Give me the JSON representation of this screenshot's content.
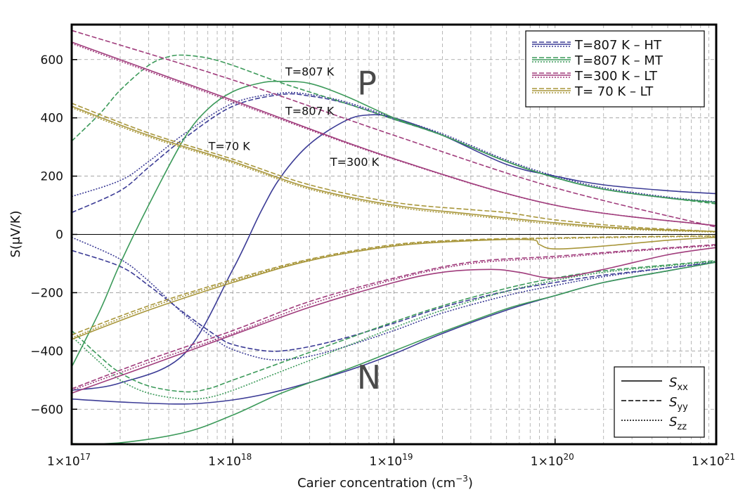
{
  "chart_data": {
    "type": "line",
    "xscale": "log",
    "xlim": [
      1e+17,
      1e+21
    ],
    "ylim": [
      -720,
      720
    ],
    "xlabel_base": "Carier concentration (cm",
    "xlabel_sup": "−3",
    "xlabel_end": ")",
    "ylabel": "S(μV/K)",
    "x_ticks": [
      {
        "value": 1e+17,
        "base": "1×10",
        "exp": "17"
      },
      {
        "value": 1e+18,
        "base": "1×10",
        "exp": "18"
      },
      {
        "value": 1e+19,
        "base": "1×10",
        "exp": "19"
      },
      {
        "value": 1e+20,
        "base": "1×10",
        "exp": "20"
      },
      {
        "value": 1e+21,
        "base": "1×10",
        "exp": "21"
      }
    ],
    "y_ticks": [
      {
        "value": 600,
        "label": "600"
      },
      {
        "value": 400,
        "label": "400"
      },
      {
        "value": 200,
        "label": "200"
      },
      {
        "value": 0,
        "label": "0"
      },
      {
        "value": -200,
        "label": "−200"
      },
      {
        "value": -400,
        "label": "−400"
      },
      {
        "value": -600,
        "label": "−600"
      }
    ],
    "grid": true,
    "zero_line": true,
    "region_labels": [
      {
        "text": "P",
        "x": 6.8e+18,
        "y": 480
      },
      {
        "text": "N",
        "x": 7e+18,
        "y": -530
      }
    ],
    "annotations": [
      {
        "text": "T=807 K",
        "x": 3e+18,
        "y": 545
      },
      {
        "text": "T=807 K",
        "x": 3e+18,
        "y": 410
      },
      {
        "text": "T=70 K",
        "x": 9.5e+17,
        "y": 290
      },
      {
        "text": "T=300 K",
        "x": 5.7e+18,
        "y": 235
      }
    ],
    "legend_series": [
      {
        "label": "T=807 K  –  HT",
        "color": "#3c3c96"
      },
      {
        "label": "T=807 K  –  MT",
        "color": "#3c9a5a"
      },
      {
        "label": "T=300 K  –  LT",
        "color": "#a03c7c"
      },
      {
        "label": "T=  70  K  –  LT",
        "color": "#a8963a"
      }
    ],
    "legend_components": [
      {
        "label": "S",
        "sub": "xx",
        "style": "solid"
      },
      {
        "label": "S",
        "sub": "yy",
        "style": "dashed"
      },
      {
        "label": "S",
        "sub": "zz",
        "style": "dotted"
      }
    ],
    "series": [
      {
        "group": "807 K - HT",
        "color": "#3c3c96",
        "style": "solid",
        "x": [
          1e+17,
          2e+17,
          5e+17,
          1e+18,
          1.5e+18,
          2e+18,
          3e+18,
          5e+18,
          7e+18,
          1e+19,
          2e+19,
          5e+19,
          1e+20,
          2e+20,
          5e+20,
          1e+21
        ],
        "y": [
          -535,
          -510,
          -410,
          -120,
          80,
          200,
          310,
          390,
          410,
          400,
          340,
          240,
          200,
          170,
          150,
          140
        ]
      },
      {
        "group": "807 K - HT",
        "color": "#3c3c96",
        "style": "dashed",
        "x": [
          1e+17,
          2e+17,
          3e+17,
          5e+17,
          1e+18,
          2e+18,
          3e+18,
          5e+18,
          1e+19,
          2e+19,
          5e+19,
          1e+20,
          2e+20,
          5e+20,
          1e+21
        ],
        "y": [
          75,
          150,
          230,
          330,
          440,
          480,
          475,
          450,
          395,
          340,
          250,
          195,
          155,
          125,
          110
        ]
      },
      {
        "group": "807 K - HT",
        "color": "#3c3c96",
        "style": "dotted",
        "x": [
          1e+17,
          2e+17,
          3e+17,
          5e+17,
          1e+18,
          2e+18,
          3e+18,
          5e+18,
          1e+19,
          2e+19,
          5e+19,
          1e+20,
          2e+20,
          5e+20,
          1e+21
        ],
        "y": [
          130,
          185,
          250,
          345,
          450,
          485,
          480,
          455,
          400,
          345,
          255,
          200,
          160,
          128,
          112
        ]
      },
      {
        "group": "807 K - HT",
        "color": "#3c3c96",
        "style": "solid",
        "x": [
          1e+17,
          2e+17,
          5e+17,
          1e+18,
          2e+18,
          5e+18,
          1e+19,
          2e+19,
          5e+19,
          1e+20,
          2e+20,
          5e+20,
          1e+21
        ],
        "y": [
          -565,
          -575,
          -582,
          -568,
          -535,
          -470,
          -410,
          -340,
          -260,
          -210,
          -165,
          -125,
          -95
        ]
      },
      {
        "group": "807 K - HT",
        "color": "#3c3c96",
        "style": "dashed",
        "x": [
          1e+17,
          2e+17,
          3e+17,
          5e+17,
          8e+17,
          1e+18,
          1.5e+18,
          2e+18,
          3e+18,
          5e+18,
          1e+19,
          2e+19,
          5e+19,
          1e+20,
          2e+20,
          5e+20,
          1e+21
        ],
        "y": [
          -55,
          -110,
          -175,
          -270,
          -350,
          -378,
          -398,
          -400,
          -385,
          -355,
          -305,
          -250,
          -195,
          -165,
          -140,
          -115,
          -95
        ]
      },
      {
        "group": "807 K - HT",
        "color": "#3c3c96",
        "style": "dotted",
        "x": [
          1e+17,
          2e+17,
          3e+17,
          5e+17,
          8e+17,
          1e+18,
          1.5e+18,
          2e+18,
          3e+18,
          5e+18,
          1e+19,
          2e+19,
          5e+19,
          1e+20,
          2e+20,
          5e+20,
          1e+21
        ],
        "y": [
          -10,
          -85,
          -160,
          -275,
          -365,
          -395,
          -425,
          -430,
          -418,
          -385,
          -330,
          -270,
          -210,
          -175,
          -145,
          -115,
          -95
        ]
      },
      {
        "group": "807 K - MT",
        "color": "#3c9a5a",
        "style": "solid",
        "x": [
          1e+17,
          1.5e+17,
          2e+17,
          3e+17,
          5e+17,
          7e+17,
          1e+18,
          1.5e+18,
          2e+18,
          3e+18,
          5e+18,
          1e+19,
          2e+19,
          5e+19,
          1e+20,
          2e+20,
          5e+20,
          1e+21
        ],
        "y": [
          -455,
          -260,
          -100,
          100,
          330,
          430,
          490,
          520,
          525,
          518,
          475,
          400,
          340,
          250,
          195,
          155,
          125,
          110
        ]
      },
      {
        "group": "807 K - MT",
        "color": "#3c9a5a",
        "style": "dashed",
        "x": [
          1e+17,
          1.5e+17,
          2e+17,
          3e+17,
          4e+17,
          5e+17,
          7e+17,
          1e+18,
          2e+18,
          5e+18,
          1e+19,
          2e+19,
          5e+19,
          1e+20,
          2e+20,
          5e+20,
          1e+21
        ],
        "y": [
          320,
          415,
          495,
          580,
          610,
          615,
          605,
          580,
          520,
          450,
          395,
          340,
          250,
          195,
          155,
          125,
          105
        ]
      },
      {
        "group": "807 K - MT",
        "color": "#3c9a5a",
        "style": "solid",
        "x": [
          1e+17,
          2e+17,
          5e+17,
          1e+18,
          2e+18,
          5e+18,
          1e+19,
          2e+19,
          5e+19,
          1e+20,
          2e+20,
          5e+20,
          1e+21
        ],
        "y": [
          -718,
          -715,
          -680,
          -620,
          -545,
          -465,
          -400,
          -335,
          -255,
          -210,
          -165,
          -125,
          -95
        ]
      },
      {
        "group": "807 K - MT",
        "color": "#3c9a5a",
        "style": "dashed",
        "x": [
          1e+17,
          1.5e+17,
          2e+17,
          3e+17,
          5e+17,
          7e+17,
          1e+18,
          2e+18,
          5e+18,
          1e+19,
          2e+19,
          5e+19,
          1e+20,
          2e+20,
          5e+20,
          1e+21
        ],
        "y": [
          -330,
          -420,
          -475,
          -520,
          -540,
          -530,
          -500,
          -440,
          -360,
          -300,
          -245,
          -185,
          -150,
          -125,
          -105,
          -90
        ]
      },
      {
        "group": "807 K - MT",
        "color": "#3c9a5a",
        "style": "dotted",
        "x": [
          1e+17,
          1.5e+17,
          2e+17,
          3e+17,
          5e+17,
          7e+17,
          1e+18,
          2e+18,
          5e+18,
          1e+19,
          2e+19,
          5e+19,
          1e+20,
          2e+20,
          5e+20,
          1e+21
        ],
        "y": [
          -350,
          -440,
          -500,
          -545,
          -565,
          -560,
          -535,
          -470,
          -385,
          -320,
          -260,
          -195,
          -158,
          -130,
          -108,
          -92
        ]
      },
      {
        "group": "300 K - LT",
        "color": "#a03c7c",
        "style": "solid",
        "x": [
          1e+17,
          1e+18,
          1e+19,
          1e+20,
          1e+21
        ],
        "y": [
          660,
          460,
          260,
          100,
          30
        ]
      },
      {
        "group": "300 K - LT",
        "color": "#a03c7c",
        "style": "dotted",
        "x": [
          1e+17,
          1e+18,
          1e+19,
          1e+20,
          1e+21
        ],
        "y": [
          655,
          455,
          258,
          100,
          30
        ]
      },
      {
        "group": "300 K - LT",
        "color": "#a03c7c",
        "style": "dashed",
        "x": [
          1e+17,
          1e+18,
          1e+19,
          1e+20,
          1e+21
        ],
        "y": [
          700,
          530,
          340,
          160,
          25
        ]
      },
      {
        "group": "300 K - LT",
        "color": "#a03c7c",
        "style": "solid",
        "x": [
          1e+17,
          3e+17,
          1e+18,
          3e+18,
          1e+19,
          2e+19,
          4e+19,
          6e+19,
          1e+20,
          2e+20,
          5e+20,
          1e+21
        ],
        "y": [
          -545,
          -450,
          -345,
          -250,
          -165,
          -130,
          -120,
          -130,
          -150,
          -120,
          -70,
          -45
        ]
      },
      {
        "group": "300 K - LT",
        "color": "#a03c7c",
        "style": "dashed",
        "x": [
          1e+17,
          3e+17,
          1e+18,
          3e+18,
          1e+19,
          3e+19,
          1e+20,
          3e+20,
          1e+21
        ],
        "y": [
          -530,
          -430,
          -330,
          -230,
          -150,
          -95,
          -75,
          -55,
          -35
        ]
      },
      {
        "group": "300 K - LT",
        "color": "#a03c7c",
        "style": "dotted",
        "x": [
          1e+17,
          3e+17,
          1e+18,
          3e+18,
          1e+19,
          3e+19,
          1e+20,
          3e+20,
          1e+21
        ],
        "y": [
          -535,
          -440,
          -340,
          -240,
          -155,
          -100,
          -80,
          -58,
          -38
        ]
      },
      {
        "group": "70 K - LT",
        "color": "#a8963a",
        "style": "solid",
        "x": [
          1e+17,
          3e+17,
          1e+18,
          3e+18,
          1e+19,
          3e+19,
          1e+20,
          3e+20,
          1e+21
        ],
        "y": [
          440,
          340,
          250,
          160,
          100,
          70,
          40,
          20,
          10
        ]
      },
      {
        "group": "70 K - LT",
        "color": "#a8963a",
        "style": "dotted",
        "x": [
          1e+17,
          3e+17,
          1e+18,
          3e+18,
          1e+19,
          3e+19,
          1e+20,
          3e+20,
          1e+21
        ],
        "y": [
          435,
          335,
          245,
          155,
          95,
          65,
          35,
          17,
          8
        ]
      },
      {
        "group": "70 K - LT",
        "color": "#a8963a",
        "style": "dashed",
        "x": [
          1e+17,
          3e+17,
          1e+18,
          3e+18,
          1e+19,
          3e+19,
          5e+19,
          1e+20,
          3e+20,
          1e+21
        ],
        "y": [
          450,
          348,
          258,
          170,
          110,
          85,
          75,
          50,
          25,
          10
        ]
      },
      {
        "group": "70 K - LT",
        "color": "#a8963a",
        "style": "solid",
        "x": [
          1e+17,
          3e+17,
          1e+18,
          3e+18,
          1e+19,
          3e+19,
          7e+19,
          8e+19,
          1e+20,
          2e+20,
          5e+20,
          1e+21
        ],
        "y": [
          -360,
          -260,
          -165,
          -90,
          -40,
          -22,
          -18,
          -35,
          -50,
          -40,
          -20,
          -10
        ]
      },
      {
        "group": "70 K - LT",
        "color": "#a8963a",
        "style": "dashed",
        "x": [
          1e+17,
          3e+17,
          1e+18,
          3e+18,
          1e+19,
          3e+19,
          1e+20,
          3e+20,
          1e+21
        ],
        "y": [
          -345,
          -245,
          -155,
          -85,
          -35,
          -18,
          -12,
          -8,
          -5
        ]
      },
      {
        "group": "70 K - LT",
        "color": "#a8963a",
        "style": "dotted",
        "x": [
          1e+17,
          3e+17,
          1e+18,
          3e+18,
          1e+19,
          3e+19,
          1e+20,
          3e+20,
          1e+21
        ],
        "y": [
          -355,
          -252,
          -160,
          -88,
          -38,
          -20,
          -14,
          -10,
          -6
        ]
      }
    ]
  }
}
